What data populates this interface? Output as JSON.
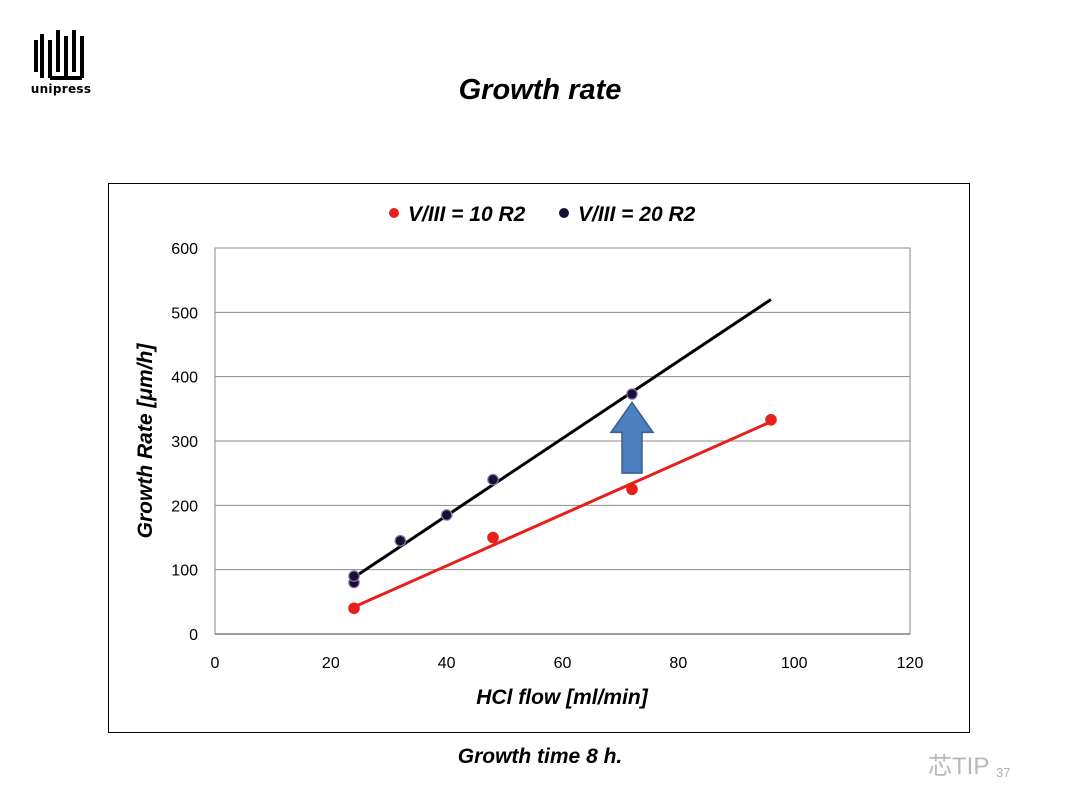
{
  "logo": {
    "text": "unipress"
  },
  "slide": {
    "title": "Growth rate",
    "caption": "Growth time 8 h.",
    "watermark": "芯TIP",
    "page_number": "37"
  },
  "chart_data": {
    "type": "scatter",
    "xlabel": "HCl flow [ml/min]",
    "ylabel": "Growth Rate [μm/h]",
    "xlim": [
      0,
      120
    ],
    "ylim": [
      0,
      600
    ],
    "xticks": [
      0,
      20,
      40,
      60,
      80,
      100,
      120
    ],
    "yticks": [
      0,
      100,
      200,
      300,
      400,
      500,
      600
    ],
    "grid": "horizontal",
    "legend_position": "top",
    "series": [
      {
        "name": "V/III = 10 R2",
        "color": "#e8201c",
        "points": [
          [
            24,
            40
          ],
          [
            48,
            150
          ],
          [
            72,
            225
          ],
          [
            96,
            333
          ]
        ],
        "trendline": [
          [
            24,
            42
          ],
          [
            96,
            330
          ]
        ]
      },
      {
        "name": "V/III = 20 R2",
        "color": "#1a0f33",
        "points": [
          [
            24,
            80
          ],
          [
            24,
            90
          ],
          [
            32,
            145
          ],
          [
            40,
            185
          ],
          [
            48,
            240
          ],
          [
            72,
            373
          ]
        ],
        "trendline": [
          [
            24,
            88
          ],
          [
            96,
            520
          ]
        ]
      }
    ],
    "annotations": [
      {
        "type": "arrow-up",
        "x": 72,
        "y_from": 250,
        "y_to": 360,
        "color": "#4a7fc0"
      }
    ]
  }
}
